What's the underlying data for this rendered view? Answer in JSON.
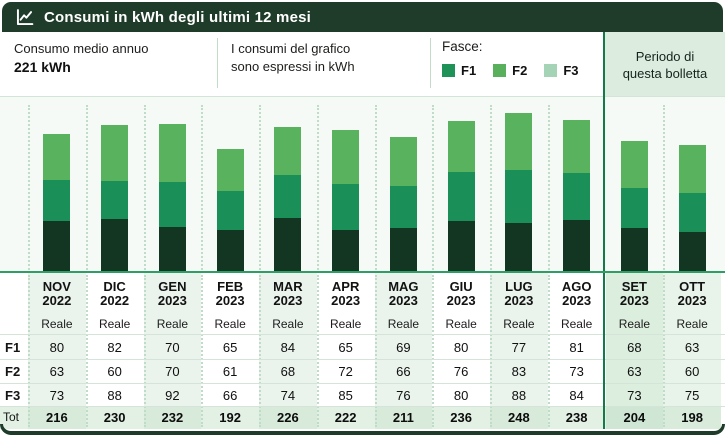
{
  "header": {
    "title": "Consumi in kWh degli ultimi 12 mesi"
  },
  "info": {
    "avg_label": "Consumo medio annuo",
    "avg_value": "221 kWh",
    "note_line1": "I consumi del grafico",
    "note_line2": "sono espressi in kWh",
    "legend_title": "Fasce:",
    "legend": [
      {
        "label": "F1",
        "color": "#1f9257"
      },
      {
        "label": "F2",
        "color": "#58b05c"
      },
      {
        "label": "F3",
        "color": "#a5d3b6"
      }
    ],
    "period_line1": "Periodo di",
    "period_line2": "questa bolletta"
  },
  "chart_data": {
    "type": "bar",
    "stacked": true,
    "title": "Consumi in kWh degli ultimi 12 mesi",
    "unit": "kWh",
    "categories": [
      "NOV 2022",
      "DIC 2022",
      "GEN 2023",
      "FEB 2023",
      "MAR 2023",
      "APR 2023",
      "MAG 2023",
      "GIU 2023",
      "LUG 2023",
      "AGO 2023",
      "SET 2023",
      "OTT 2023"
    ],
    "series": [
      {
        "name": "F1",
        "bar_color": "#123621",
        "values": [
          80,
          82,
          70,
          65,
          84,
          65,
          69,
          80,
          77,
          81,
          68,
          63
        ]
      },
      {
        "name": "F2",
        "bar_color": "#1b8f58",
        "values": [
          63,
          60,
          70,
          61,
          68,
          72,
          66,
          76,
          83,
          73,
          63,
          60
        ]
      },
      {
        "name": "F3",
        "bar_color": "#59b25e",
        "values": [
          73,
          88,
          92,
          66,
          74,
          85,
          76,
          80,
          88,
          84,
          73,
          75
        ]
      }
    ],
    "totals": [
      216,
      230,
      232,
      192,
      226,
      222,
      211,
      236,
      248,
      238,
      204,
      198
    ],
    "ylim": [
      0,
      260
    ],
    "grid": "dotted-vertical",
    "legend_position": "top",
    "highlight_period": {
      "label": "Periodo di questa bolletta",
      "categories": [
        "SET 2023",
        "OTT 2023"
      ]
    },
    "annual_average_kwh": 221
  },
  "table": {
    "columns": [
      {
        "month": "NOV",
        "year": "2022",
        "type": "Reale"
      },
      {
        "month": "DIC",
        "year": "2022",
        "type": "Reale"
      },
      {
        "month": "GEN",
        "year": "2023",
        "type": "Reale"
      },
      {
        "month": "FEB",
        "year": "2023",
        "type": "Reale"
      },
      {
        "month": "MAR",
        "year": "2023",
        "type": "Reale"
      },
      {
        "month": "APR",
        "year": "2023",
        "type": "Reale"
      },
      {
        "month": "MAG",
        "year": "2023",
        "type": "Reale"
      },
      {
        "month": "GIU",
        "year": "2023",
        "type": "Reale"
      },
      {
        "month": "LUG",
        "year": "2023",
        "type": "Reale"
      },
      {
        "month": "AGO",
        "year": "2023",
        "type": "Reale"
      },
      {
        "month": "SET",
        "year": "2023",
        "type": "Reale"
      },
      {
        "month": "OTT",
        "year": "2023",
        "type": "Reale"
      }
    ],
    "row_labels": {
      "f1": "F1",
      "f2": "F2",
      "f3": "F3",
      "tot": "Tot"
    },
    "rows": {
      "f1": [
        80,
        82,
        70,
        65,
        84,
        65,
        69,
        80,
        77,
        81,
        68,
        63
      ],
      "f2": [
        63,
        60,
        70,
        61,
        68,
        72,
        66,
        76,
        83,
        73,
        63,
        60
      ],
      "f3": [
        73,
        88,
        92,
        66,
        74,
        85,
        76,
        80,
        88,
        84,
        73,
        75
      ],
      "tot": [
        216,
        230,
        232,
        192,
        226,
        222,
        211,
        236,
        248,
        238,
        204,
        198
      ]
    }
  },
  "colors": {
    "header_bg": "#1f3c2a",
    "section_bg": "#dcecdf",
    "section_border": "#157a4a",
    "baseline": "#2e9e66",
    "stripe_a": "#eaf3ec",
    "stripe_b": "#ffffff",
    "stripe_a_period": "#dceede",
    "stripe_b_period": "#e8f3e9",
    "tot_a": "#d8ebdb",
    "tot_b": "#e3f1e5",
    "tot_a_period": "#cfe6d4",
    "tot_b_period": "#d9ecdc"
  }
}
